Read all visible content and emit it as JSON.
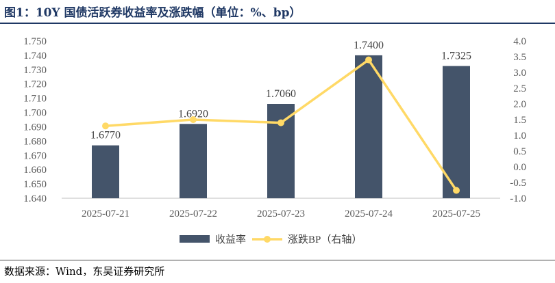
{
  "title": "图1：10Y 国债活跃券收益率及涨跌幅（单位：%、bp）",
  "source": "数据来源：Wind，东吴证券研究所",
  "colors": {
    "bar": "#44546a",
    "line": "#ffd966",
    "title": "#1f3864"
  },
  "chart_data": {
    "type": "bar",
    "categories": [
      "2025-07-21",
      "2025-07-22",
      "2025-07-23",
      "2025-07-24",
      "2025-07-25"
    ],
    "series": [
      {
        "name": "收益率",
        "type": "bar",
        "axis": "left",
        "values": [
          1.677,
          1.692,
          1.706,
          1.74,
          1.7325
        ],
        "labels": [
          "1.6770",
          "1.6920",
          "1.7060",
          "1.7400",
          "1.7325"
        ]
      },
      {
        "name": "涨跌BP（右轴）",
        "type": "line",
        "axis": "right",
        "values": [
          1.3,
          1.5,
          1.4,
          3.4,
          -0.75
        ]
      }
    ],
    "y_left": {
      "lim": [
        1.64,
        1.75
      ],
      "ticks": [
        "1.750",
        "1.740",
        "1.730",
        "1.720",
        "1.710",
        "1.700",
        "1.690",
        "1.680",
        "1.670",
        "1.660",
        "1.650",
        "1.640"
      ]
    },
    "y_right": {
      "lim": [
        -1.0,
        4.0
      ],
      "ticks": [
        "4.0",
        "3.5",
        "3.0",
        "2.5",
        "2.0",
        "1.5",
        "1.0",
        "0.5",
        "0.0",
        "-0.5",
        "-1.0"
      ]
    },
    "grid": false,
    "legend": "bottom"
  }
}
